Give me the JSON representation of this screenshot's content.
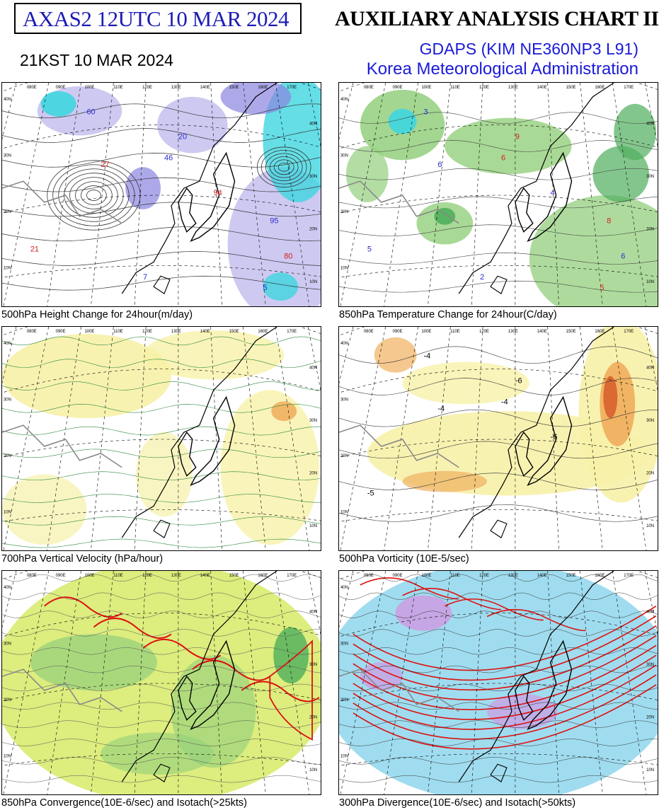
{
  "header": {
    "code": "AXAS2  12UTC 10 MAR 2024",
    "kst": "21KST 10 MAR 2024",
    "title": "AUXILIARY ANALYSIS CHART II",
    "model": "GDAPS (KIM NE360NP3 L91)",
    "org": "Korea Meteorological Administration"
  },
  "panels": [
    {
      "caption": "500hPa Height Change for 24hour(m/day)",
      "theme": "height",
      "labels": [
        {
          "t": "60",
          "c": "#2a2ad0"
        },
        {
          "t": "20",
          "c": "#2a2ad0"
        },
        {
          "t": "46",
          "c": "#2a2ad0"
        },
        {
          "t": "21",
          "c": "#d02020"
        },
        {
          "t": "27",
          "c": "#d02020"
        },
        {
          "t": "94",
          "c": "#d02020"
        },
        {
          "t": "7",
          "c": "#2a2ad0"
        },
        {
          "t": "5",
          "c": "#2a2ad0"
        },
        {
          "t": "80",
          "c": "#d02020"
        },
        {
          "t": "95",
          "c": "#2a2ad0"
        }
      ]
    },
    {
      "caption": "850hPa Temperature Change for 24hour(C/day)",
      "theme": "temp",
      "labels": [
        {
          "t": "3",
          "c": "#2a2ad0"
        },
        {
          "t": "9",
          "c": "#d02020"
        },
        {
          "t": "6",
          "c": "#d02020"
        },
        {
          "t": "5",
          "c": "#2a2ad0"
        },
        {
          "t": "6",
          "c": "#2a2ad0"
        },
        {
          "t": "4",
          "c": "#2a2ad0"
        },
        {
          "t": "2",
          "c": "#2a2ad0"
        },
        {
          "t": "5",
          "c": "#d02020"
        },
        {
          "t": "6",
          "c": "#2a2ad0"
        },
        {
          "t": "8",
          "c": "#d02020"
        }
      ]
    },
    {
      "caption": "700hPa Vertical Velocity (hPa/hour)",
      "theme": "vv",
      "labels": []
    },
    {
      "caption": "500hPa Vorticity (10E-5/sec)",
      "theme": "vort",
      "labels": [
        {
          "t": "-4",
          "c": "#000"
        },
        {
          "t": "-6",
          "c": "#000"
        },
        {
          "t": "-4",
          "c": "#000"
        },
        {
          "t": "-5",
          "c": "#000"
        },
        {
          "t": "-4",
          "c": "#000"
        },
        {
          "t": "-6",
          "c": "#000"
        }
      ]
    },
    {
      "caption": "850hPa Convergence(10E-6/sec) and Isotach(>25kts)",
      "theme": "conv",
      "labels": []
    },
    {
      "caption": "300hPa Divergence(10E-6/sec) and Isotach(>50kts)",
      "theme": "div",
      "labels": []
    }
  ],
  "map": {
    "lon_labels": [
      "080E",
      "090E",
      "100E",
      "110E",
      "120E",
      "130E",
      "140E",
      "150E",
      "160E",
      "170E"
    ],
    "lat_labels": [
      "40N",
      "30N",
      "20N",
      "10N"
    ]
  },
  "colors": {
    "title_blue": "#1a1ad8",
    "code_blue": "#1b1bb5",
    "height_fill": "#c9c3f0",
    "height_fill_dark": "#8a84e0",
    "cyan": "#3fd6e0",
    "green": "#93cf7c",
    "green_dark": "#4fae5c",
    "yellow": "#f7f1a8",
    "orange": "#f0b060",
    "red_orange": "#d86530",
    "lime": "#d9eb70",
    "blue_cyan": "#8fd6ec",
    "isotach": "#dd1111"
  }
}
